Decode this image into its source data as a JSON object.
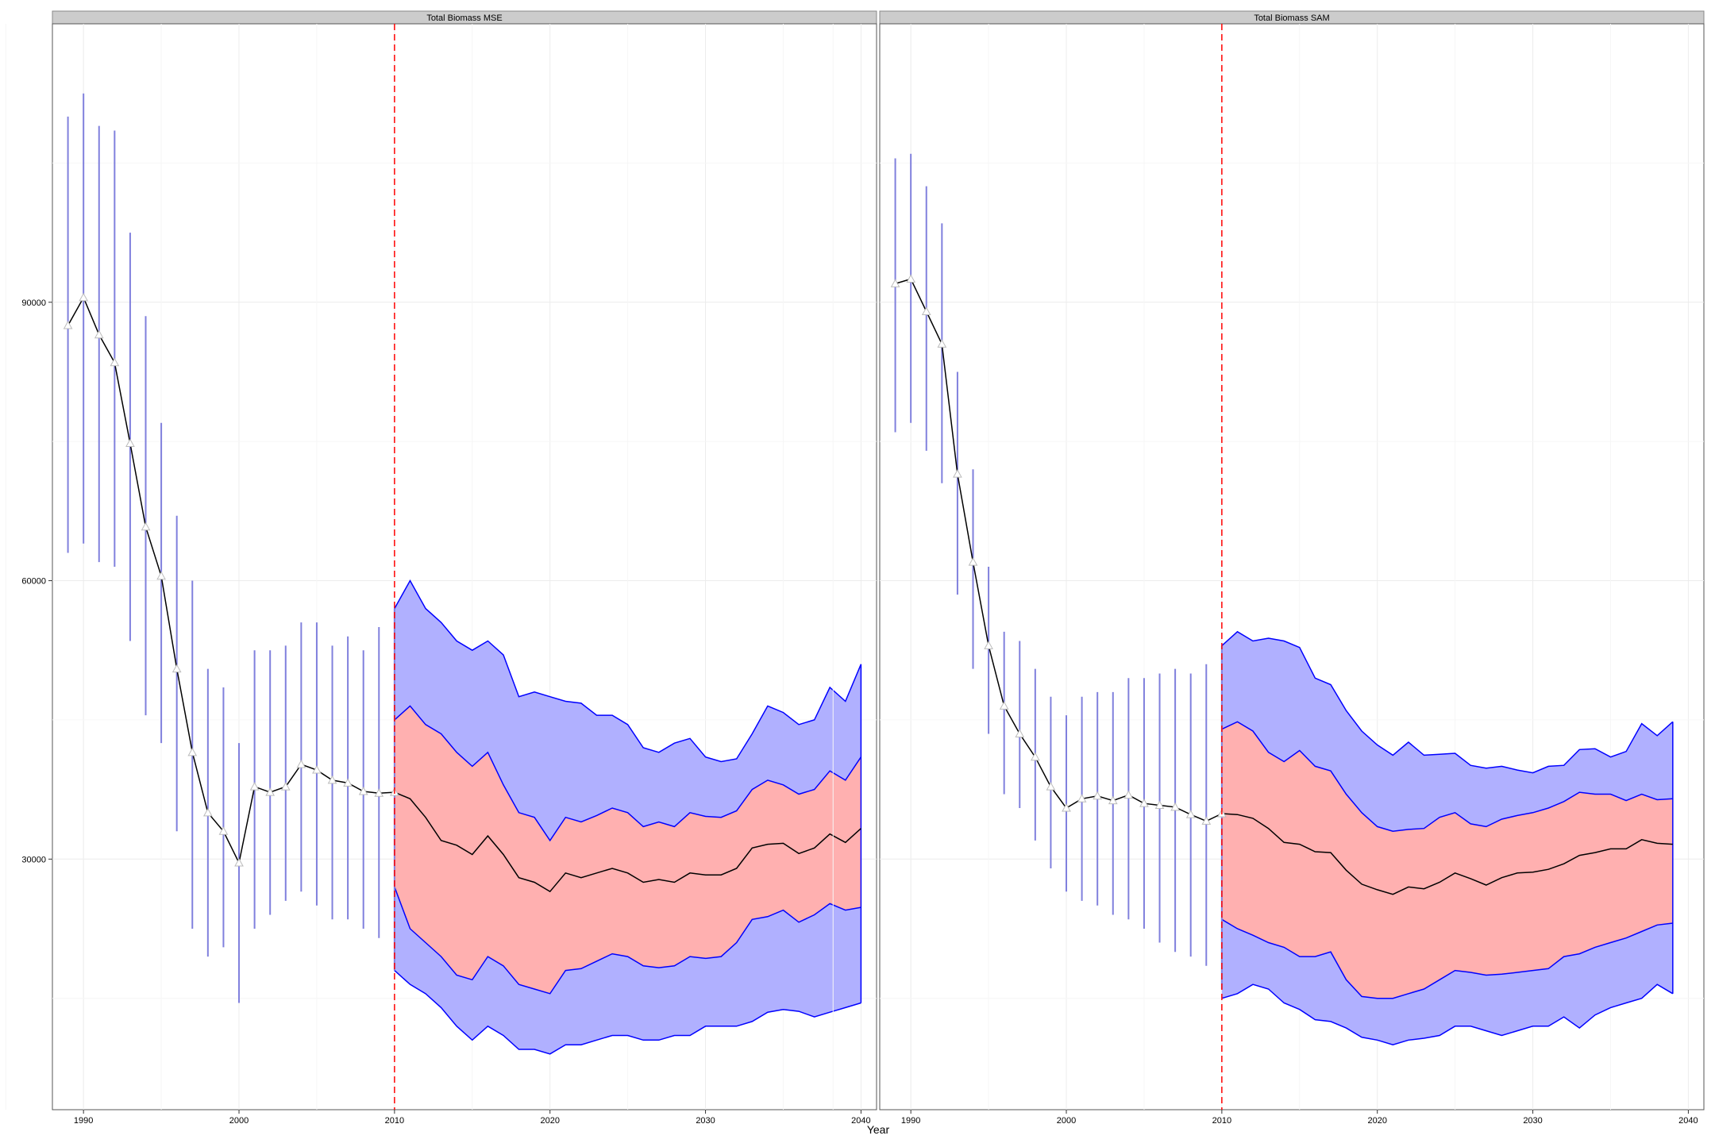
{
  "chart_data": [
    {
      "type": "line",
      "title": "Total Biomass MSE",
      "xlabel": "Year",
      "ylabel": "",
      "xlim": [
        1988,
        2041
      ],
      "ylim": [
        3000,
        120000
      ],
      "x_ticks": [
        1990,
        2000,
        2010,
        2020,
        2030,
        2040
      ],
      "y_ticks": [
        30000,
        60000,
        90000
      ],
      "grid": true,
      "vline_x": 2010,
      "colors": {
        "vline": "#ff0000",
        "historic_error_bars": "#8080dd",
        "outer_band": "#b0b0ff",
        "inner_band": "#ffb0b0",
        "band_edge": "#0000ff",
        "median_line": "#000000",
        "point_fill": "#ffffff"
      },
      "historic": {
        "x": [
          1989,
          1990,
          1991,
          1992,
          1993,
          1994,
          1995,
          1996,
          1997,
          1998,
          1999,
          2000,
          2001,
          2002,
          2003,
          2004,
          2005,
          2006,
          2007,
          2008,
          2009,
          2010
        ],
        "y": [
          87500,
          90500,
          86500,
          83500,
          74800,
          65800,
          60500,
          50500,
          41500,
          35000,
          33000,
          29600,
          37800,
          37200,
          37800,
          40200,
          39600,
          38500,
          38200,
          37300,
          37100,
          37200
        ],
        "lower": [
          63000,
          64000,
          62000,
          61500,
          53500,
          45500,
          42500,
          33000,
          22500,
          19500,
          20500,
          14500,
          22500,
          24000,
          25500,
          26500,
          25000,
          23500,
          23500,
          22500,
          21500,
          18000
        ],
        "upper": [
          110000,
          112500,
          109000,
          108500,
          97500,
          88500,
          77000,
          67000,
          60000,
          50500,
          48500,
          42500,
          52500,
          52500,
          53000,
          55500,
          55500,
          53000,
          54000,
          52500,
          55000,
          57000
        ]
      },
      "projection": {
        "x": [
          2010,
          2011,
          2012,
          2013,
          2014,
          2015,
          2016,
          2017,
          2018,
          2019,
          2020,
          2021,
          2022,
          2023,
          2024,
          2025,
          2026,
          2027,
          2028,
          2029,
          2030,
          2031,
          2032,
          2033,
          2034,
          2035,
          2036,
          2037,
          2038,
          2039,
          2040
        ],
        "p05": [
          18000,
          16500,
          15500,
          14000,
          12000,
          10500,
          12000,
          11000,
          9500,
          9500,
          9000,
          10000,
          10000,
          10500,
          11000,
          11000,
          10500,
          10500,
          11000,
          11000,
          12000,
          12000,
          12000,
          12500,
          13500,
          13800,
          13600,
          13000,
          13500,
          14000,
          14500
        ],
        "p25": [
          27000,
          22500,
          21000,
          19500,
          17500,
          17000,
          19500,
          18500,
          16500,
          16000,
          15500,
          18000,
          18200,
          19000,
          19800,
          19500,
          18500,
          18300,
          18500,
          19500,
          19300,
          19500,
          21000,
          23500,
          23800,
          24500,
          23200,
          24000,
          25200,
          24500,
          24800
        ],
        "median": [
          37200,
          36500,
          34500,
          32000,
          31500,
          30500,
          32500,
          30500,
          28000,
          27500,
          26500,
          28500,
          28000,
          28500,
          29000,
          28500,
          27500,
          27800,
          27500,
          28500,
          28300,
          28300,
          29000,
          31200,
          31600,
          31700,
          30600,
          31200,
          32700,
          31800,
          33300
        ],
        "p75": [
          45000,
          46500,
          44500,
          43500,
          41500,
          40000,
          41500,
          38000,
          35000,
          34500,
          32000,
          34500,
          34000,
          34700,
          35500,
          35000,
          33500,
          34000,
          33500,
          35000,
          34600,
          34500,
          35200,
          37500,
          38500,
          38000,
          37000,
          37500,
          39500,
          38500,
          41000
        ],
        "p95": [
          57000,
          60000,
          57000,
          55500,
          53500,
          52500,
          53500,
          52000,
          47500,
          48000,
          47500,
          47000,
          46800,
          45500,
          45500,
          44500,
          42000,
          41500,
          42500,
          43000,
          41000,
          40500,
          40800,
          43500,
          46500,
          45800,
          44500,
          45000,
          48500,
          47000,
          51000
        ]
      }
    },
    {
      "type": "line",
      "title": "Total Biomass SAM",
      "xlabel": "Year",
      "ylabel": "",
      "xlim": [
        1988,
        2041
      ],
      "ylim": [
        3000,
        120000
      ],
      "x_ticks": [
        1990,
        2000,
        2010,
        2020,
        2030,
        2040
      ],
      "y_ticks": [
        30000,
        60000,
        90000
      ],
      "grid": true,
      "vline_x": 2010,
      "colors": {
        "vline": "#ff0000",
        "historic_error_bars": "#8080dd",
        "outer_band": "#b0b0ff",
        "inner_band": "#ffb0b0",
        "band_edge": "#0000ff",
        "median_line": "#000000",
        "point_fill": "#ffffff"
      },
      "historic": {
        "x": [
          1989,
          1990,
          1991,
          1992,
          1993,
          1994,
          1995,
          1996,
          1997,
          1998,
          1999,
          2000,
          2001,
          2002,
          2003,
          2004,
          2005,
          2006,
          2007,
          2008,
          2009,
          2010
        ],
        "y": [
          92000,
          92500,
          89000,
          85500,
          71500,
          62000,
          53000,
          46500,
          43500,
          41000,
          37800,
          35500,
          36500,
          36800,
          36300,
          36900,
          36000,
          35800,
          35600,
          34800,
          34100,
          34900
        ],
        "lower": [
          76000,
          77000,
          74000,
          70500,
          58500,
          50500,
          43500,
          37000,
          35500,
          32000,
          29000,
          26500,
          25500,
          25000,
          24000,
          23500,
          22500,
          21000,
          20000,
          19500,
          18500,
          16000
        ],
        "upper": [
          105500,
          106000,
          102500,
          98500,
          82500,
          72000,
          61500,
          54500,
          53500,
          50500,
          47500,
          45500,
          47500,
          48000,
          48000,
          49500,
          49500,
          50000,
          50500,
          50000,
          51000,
          53000
        ]
      },
      "projection": {
        "x": [
          2010,
          2011,
          2012,
          2013,
          2014,
          2015,
          2016,
          2017,
          2018,
          2019,
          2020,
          2021,
          2022,
          2023,
          2024,
          2025,
          2026,
          2027,
          2028,
          2029,
          2030,
          2031,
          2032,
          2033,
          2034,
          2035,
          2036,
          2037,
          2038,
          2039
        ],
        "p05": [
          15000,
          15500,
          16500,
          16000,
          14500,
          13800,
          12700,
          12500,
          11800,
          10800,
          10500,
          10000,
          10500,
          10700,
          11000,
          12000,
          12000,
          11500,
          11000,
          11500,
          12000,
          12000,
          13000,
          11800,
          13200,
          14000,
          14500,
          15000,
          16500,
          15500
        ],
        "p25": [
          23500,
          22500,
          21800,
          21000,
          20500,
          19500,
          19500,
          20000,
          17000,
          15200,
          15000,
          15000,
          15500,
          16000,
          17000,
          18000,
          17800,
          17500,
          17600,
          17800,
          18000,
          18200,
          19500,
          19800,
          20500,
          21000,
          21500,
          22200,
          22900,
          23100
        ],
        "median": [
          34900,
          34800,
          34400,
          33300,
          31800,
          31600,
          30800,
          30700,
          28800,
          27300,
          26700,
          26200,
          27000,
          26800,
          27500,
          28500,
          27900,
          27200,
          28000,
          28500,
          28600,
          28900,
          29500,
          30400,
          30700,
          31100,
          31100,
          32100,
          31700,
          31600
        ],
        "p75": [
          44000,
          44800,
          43800,
          41500,
          40500,
          41700,
          40000,
          39500,
          37000,
          35000,
          33500,
          33000,
          33200,
          33300,
          34500,
          35000,
          33800,
          33500,
          34300,
          34700,
          35000,
          35500,
          36200,
          37200,
          37000,
          37000,
          36300,
          37000,
          36400,
          36500
        ],
        "p95": [
          53000,
          54500,
          53500,
          53800,
          53500,
          52800,
          49500,
          48800,
          46000,
          43800,
          42300,
          41200,
          42600,
          41200,
          41300,
          41400,
          40100,
          39800,
          40000,
          39600,
          39300,
          40000,
          40100,
          41800,
          41900,
          41000,
          41600,
          44600,
          43300,
          44800
        ]
      }
    }
  ]
}
